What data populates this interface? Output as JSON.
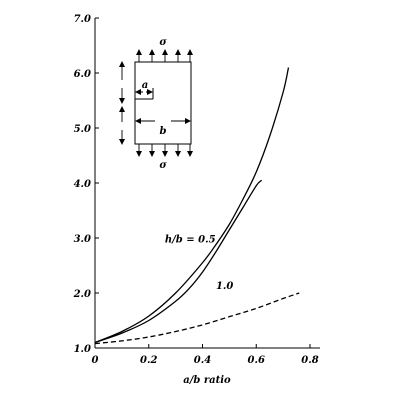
{
  "chart_data": {
    "type": "line",
    "xlabel": "a/b ratio",
    "ylabel": "",
    "xlim": [
      0,
      0.8
    ],
    "ylim": [
      1.0,
      7.0
    ],
    "x_ticks": [
      "0",
      "0.2",
      "0.4",
      "0.6",
      "0.8"
    ],
    "x_tick_values": [
      0,
      0.2,
      0.4,
      0.6,
      0.8
    ],
    "y_ticks": [
      "1.0",
      "2.0",
      "3.0",
      "4.0",
      "5.0",
      "6.0",
      "7.0"
    ],
    "y_tick_values": [
      1,
      2,
      3,
      4,
      5,
      6,
      7
    ],
    "grid": false,
    "legend": "none",
    "series": [
      {
        "name": "h/b = 0.5",
        "style": "solid",
        "x": [
          0,
          0.1,
          0.2,
          0.3,
          0.4,
          0.45,
          0.5,
          0.55,
          0.6,
          0.65,
          0.7,
          0.72
        ],
        "y": [
          1.1,
          1.3,
          1.58,
          2.0,
          2.55,
          2.88,
          3.25,
          3.7,
          4.2,
          4.85,
          5.65,
          6.1
        ]
      },
      {
        "name": "1.0",
        "style": "solid",
        "x": [
          0,
          0.1,
          0.2,
          0.3,
          0.35,
          0.4,
          0.45,
          0.5,
          0.55,
          0.6,
          0.62
        ],
        "y": [
          1.1,
          1.27,
          1.5,
          1.85,
          2.08,
          2.38,
          2.75,
          3.15,
          3.55,
          3.95,
          4.05
        ]
      },
      {
        "name": "",
        "style": "dashed",
        "x": [
          0,
          0.1,
          0.2,
          0.3,
          0.4,
          0.5,
          0.6,
          0.7,
          0.76
        ],
        "y": [
          1.08,
          1.13,
          1.2,
          1.3,
          1.42,
          1.57,
          1.72,
          1.9,
          2.0
        ]
      }
    ],
    "annotations": [
      {
        "text": "h/b = 0.5",
        "x": 0.26,
        "y": 2.92
      },
      {
        "text": "1.0",
        "x": 0.45,
        "y": 2.07
      }
    ]
  },
  "inset": {
    "sigma_top": "σ",
    "sigma_bottom": "σ",
    "crack_label": "a",
    "width_label": "b"
  }
}
